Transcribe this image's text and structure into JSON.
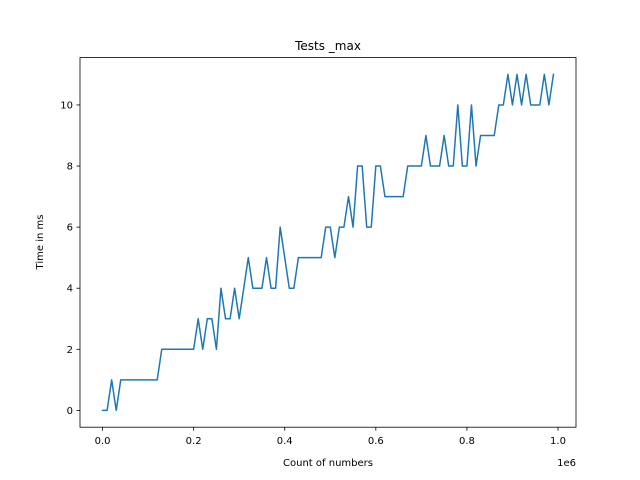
{
  "chart_data": {
    "type": "line",
    "title": "Tests _max",
    "xlabel": "Count of numbers",
    "ylabel": "Time in ms",
    "x_scale_label": "1e6",
    "xlim": [
      -0.0495,
      1.0395
    ],
    "ylim": [
      -0.55,
      11.55
    ],
    "x_ticks": [
      0.0,
      0.2,
      0.4,
      0.6,
      0.8,
      1.0
    ],
    "x_tick_labels": [
      "0.0",
      "0.2",
      "0.4",
      "0.6",
      "0.8",
      "1.0"
    ],
    "y_ticks": [
      0,
      2,
      4,
      6,
      8,
      10
    ],
    "y_tick_labels": [
      "0",
      "2",
      "4",
      "6",
      "8",
      "10"
    ],
    "grid": false,
    "line_color": "#1f77b4",
    "series": [
      {
        "x": [
          0.0,
          0.01,
          0.02,
          0.03,
          0.04,
          0.05,
          0.06,
          0.07,
          0.08,
          0.09,
          0.1,
          0.11,
          0.12,
          0.13,
          0.14,
          0.15,
          0.16,
          0.17,
          0.18,
          0.19,
          0.2,
          0.21,
          0.22,
          0.23,
          0.24,
          0.25,
          0.26,
          0.27,
          0.28,
          0.29,
          0.3,
          0.31,
          0.32,
          0.33,
          0.34,
          0.35,
          0.36,
          0.37,
          0.38,
          0.39,
          0.4,
          0.41,
          0.42,
          0.43,
          0.44,
          0.45,
          0.46,
          0.47,
          0.48,
          0.49,
          0.5,
          0.51,
          0.52,
          0.53,
          0.54,
          0.55,
          0.56,
          0.57,
          0.58,
          0.59,
          0.6,
          0.61,
          0.62,
          0.63,
          0.64,
          0.65,
          0.66,
          0.67,
          0.68,
          0.69,
          0.7,
          0.71,
          0.72,
          0.73,
          0.74,
          0.75,
          0.76,
          0.77,
          0.78,
          0.79,
          0.8,
          0.81,
          0.82,
          0.83,
          0.84,
          0.85,
          0.86,
          0.87,
          0.88,
          0.89,
          0.9,
          0.91,
          0.92,
          0.93,
          0.94,
          0.95,
          0.96,
          0.97,
          0.98,
          0.99
        ],
        "y": [
          0,
          0,
          1,
          0,
          1,
          1,
          1,
          1,
          1,
          1,
          1,
          1,
          1,
          2,
          2,
          2,
          2,
          2,
          2,
          2,
          2,
          3,
          2,
          3,
          3,
          2,
          4,
          3,
          3,
          4,
          3,
          4,
          5,
          4,
          4,
          4,
          5,
          4,
          4,
          6,
          5,
          4,
          4,
          5,
          5,
          5,
          5,
          5,
          5,
          6,
          6,
          5,
          6,
          6,
          7,
          6,
          8,
          8,
          6,
          6,
          8,
          8,
          7,
          7,
          7,
          7,
          7,
          8,
          8,
          8,
          8,
          9,
          8,
          8,
          8,
          9,
          8,
          8,
          10,
          8,
          8,
          10,
          8,
          9,
          9,
          9,
          9,
          10,
          10,
          11,
          10,
          11,
          10,
          11,
          10,
          10,
          10,
          11,
          10,
          11
        ]
      }
    ]
  }
}
